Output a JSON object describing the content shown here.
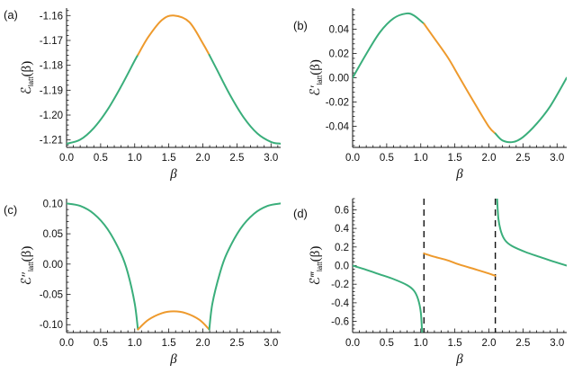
{
  "colors": {
    "green": "#3aae7b",
    "orange": "#ee9a2d",
    "asymptote": "#111111"
  },
  "chart_data": [
    {
      "panel": "(a)",
      "type": "line",
      "function": "E",
      "ylabel": "ℰlatt(β)",
      "ylabel_main": "ℰ",
      "ylabel_prime": "",
      "ylabel_sub": "latt",
      "ylabel_arg": "(β)",
      "xlabel": "β",
      "xlim": [
        0,
        3.1416
      ],
      "ylim": [
        -1.213,
        -1.157
      ],
      "xticks": [
        0.0,
        0.5,
        1.0,
        1.5,
        2.0,
        2.5,
        3.0
      ],
      "xtick_labels": [
        "0.0",
        "0.5",
        "1.0",
        "1.5",
        "2.0",
        "2.5",
        "3.0"
      ],
      "yticks": [
        -1.16,
        -1.17,
        -1.18,
        -1.19,
        -1.2,
        -1.21
      ],
      "ytick_labels": [
        "-1.16",
        "-1.17",
        "-1.18",
        "-1.19",
        "-1.20",
        "-1.21"
      ],
      "segments": [
        {
          "color": "green",
          "x": [
            0.0,
            0.2,
            0.4,
            0.6,
            0.8,
            1.0,
            1.047
          ],
          "y": [
            -1.2115,
            -1.2099,
            -1.2052,
            -1.1979,
            -1.1885,
            -1.1781,
            -1.1758
          ]
        },
        {
          "color": "orange",
          "x": [
            1.047,
            1.2,
            1.4,
            1.571,
            1.8,
            2.0,
            2.094
          ],
          "y": [
            -1.1758,
            -1.1686,
            -1.1618,
            -1.16,
            -1.1626,
            -1.1712,
            -1.1758
          ]
        },
        {
          "color": "green",
          "x": [
            2.094,
            2.2,
            2.4,
            2.6,
            2.8,
            3.0,
            3.1416
          ],
          "y": [
            -1.1758,
            -1.1814,
            -1.192,
            -1.201,
            -1.2074,
            -1.2108,
            -1.2115
          ]
        }
      ],
      "asymptotes": []
    },
    {
      "panel": "(b)",
      "type": "line",
      "function": "dE",
      "ylabel": "ℰ′latt(β)",
      "ylabel_main": "ℰ",
      "ylabel_prime": "′",
      "ylabel_sub": "latt",
      "ylabel_arg": "(β)",
      "xlabel": "β",
      "xlim": [
        0,
        3.1416
      ],
      "ylim": [
        -0.0575,
        0.0575
      ],
      "xticks": [
        0.0,
        0.5,
        1.0,
        1.5,
        2.0,
        2.5,
        3.0
      ],
      "xtick_labels": [
        "0.0",
        "0.5",
        "1.0",
        "1.5",
        "2.0",
        "2.5",
        "3.0"
      ],
      "yticks": [
        0.04,
        0.02,
        0.0,
        -0.02,
        -0.04
      ],
      "ytick_labels": [
        "0.04",
        "0.02",
        "0.00",
        "-0.02",
        "-0.04"
      ],
      "segments": [
        {
          "color": "green",
          "x": [
            0.0,
            0.2,
            0.4,
            0.6,
            0.785,
            0.9,
            1.047
          ],
          "y": [
            0.0,
            0.0196,
            0.0375,
            0.049,
            0.053,
            0.0514,
            0.0446
          ]
        },
        {
          "color": "orange",
          "x": [
            1.047,
            1.2,
            1.4,
            1.571,
            1.8,
            2.0,
            2.094
          ],
          "y": [
            0.0446,
            0.0325,
            0.0165,
            0.0,
            -0.022,
            -0.0405,
            -0.046
          ]
        },
        {
          "color": "green",
          "x": [
            2.094,
            2.2,
            2.356,
            2.5,
            2.7,
            2.9,
            3.1416
          ],
          "y": [
            -0.046,
            -0.0518,
            -0.053,
            -0.049,
            -0.038,
            -0.0235,
            0.0
          ]
        }
      ],
      "asymptotes": []
    },
    {
      "panel": "(c)",
      "type": "line",
      "function": "d2E",
      "ylabel": "ℰ″latt(β)",
      "ylabel_main": "ℰ",
      "ylabel_prime": "″",
      "ylabel_sub": "latt",
      "ylabel_arg": "(β)",
      "xlabel": "β",
      "xlim": [
        0,
        3.1416
      ],
      "ylim": [
        -0.113,
        0.108
      ],
      "xticks": [
        0.0,
        0.5,
        1.0,
        1.5,
        2.0,
        2.5,
        3.0
      ],
      "xtick_labels": [
        "0.0",
        "0.5",
        "1.0",
        "1.5",
        "2.0",
        "2.5",
        "3.0"
      ],
      "yticks": [
        0.1,
        0.05,
        0.0,
        -0.05,
        -0.1
      ],
      "ytick_labels": [
        "0.10",
        "0.05",
        "0.00",
        "-0.05",
        "-0.10"
      ],
      "segments": [
        {
          "color": "green",
          "x": [
            0.0,
            0.2,
            0.4,
            0.6,
            0.8,
            0.9,
            1.0,
            1.047
          ],
          "y": [
            0.1,
            0.096,
            0.083,
            0.058,
            0.017,
            -0.015,
            -0.065,
            -0.108
          ]
        },
        {
          "color": "orange",
          "x": [
            1.047,
            1.2,
            1.4,
            1.571,
            1.75,
            1.95,
            2.094
          ],
          "y": [
            -0.108,
            -0.092,
            -0.081,
            -0.078,
            -0.081,
            -0.092,
            -0.108
          ]
        },
        {
          "color": "green",
          "x": [
            2.094,
            2.14,
            2.25,
            2.35,
            2.55,
            2.75,
            2.95,
            3.1416
          ],
          "y": [
            -0.108,
            -0.065,
            -0.015,
            0.017,
            0.058,
            0.083,
            0.096,
            0.1
          ]
        }
      ],
      "asymptotes": []
    },
    {
      "panel": "(d)",
      "type": "line",
      "function": "d3E",
      "ylabel": "ℰ‴latt(β)",
      "ylabel_main": "ℰ",
      "ylabel_prime": "‴",
      "ylabel_sub": "latt",
      "ylabel_arg": "(β)",
      "xlabel": "β",
      "xlim": [
        0,
        3.1416
      ],
      "ylim": [
        -0.72,
        0.72
      ],
      "xticks": [
        0.0,
        0.5,
        1.0,
        1.5,
        2.0,
        2.5,
        3.0
      ],
      "xtick_labels": [
        "0.0",
        "0.5",
        "1.0",
        "1.5",
        "2.0",
        "2.5",
        "3.0"
      ],
      "yticks": [
        0.6,
        0.4,
        0.2,
        0.0,
        -0.2,
        -0.4,
        -0.6
      ],
      "ytick_labels": [
        "0.6",
        "0.4",
        "0.2",
        "0.0",
        "-0.2",
        "-0.4",
        "-0.6"
      ],
      "segments": [
        {
          "color": "green",
          "x": [
            0.0,
            0.2,
            0.4,
            0.6,
            0.8,
            0.9,
            0.96,
            1.0,
            1.02
          ],
          "y": [
            0.0,
            -0.045,
            -0.095,
            -0.145,
            -0.21,
            -0.27,
            -0.36,
            -0.5,
            -0.72
          ]
        },
        {
          "color": "orange",
          "x": [
            1.047,
            1.2,
            1.4,
            1.571,
            1.8,
            2.0,
            2.094
          ],
          "y": [
            0.13,
            0.095,
            0.055,
            0.01,
            -0.04,
            -0.085,
            -0.11
          ]
        },
        {
          "color": "green",
          "x": [
            2.12,
            2.14,
            2.18,
            2.24,
            2.34,
            2.54,
            2.74,
            2.94,
            3.1416
          ],
          "y": [
            0.72,
            0.5,
            0.36,
            0.27,
            0.21,
            0.145,
            0.095,
            0.045,
            0.0
          ]
        }
      ],
      "asymptotes": [
        1.047,
        2.094
      ]
    }
  ]
}
